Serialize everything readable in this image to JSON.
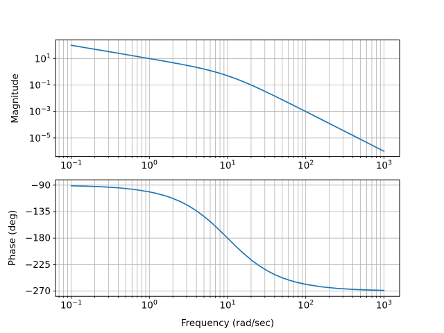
{
  "figure": {
    "background": "#ffffff",
    "title": ""
  },
  "chart_data": [
    {
      "type": "line",
      "name": "magnitude",
      "title": "",
      "xlabel": "",
      "ylabel": "Magnitude",
      "xscale": "log",
      "yscale": "log",
      "xlim_exponents": [
        -1.2,
        3.2
      ],
      "ylim_exponents": [
        -6.4,
        2.4
      ],
      "x_tick_exponents": [
        -1,
        0,
        1,
        2,
        3
      ],
      "y_tick_exponents": [
        1,
        -1,
        -3,
        -5
      ],
      "grid": "both",
      "grid_color": "#b0b0b0",
      "spine_color": "#000000",
      "line_color": "#1f77b4",
      "legend": "none",
      "x": [
        0.1,
        0.1585,
        0.2512,
        0.3981,
        0.631,
        1,
        1.259,
        1.585,
        1.995,
        2.512,
        3.162,
        3.981,
        5.012,
        6.31,
        7.943,
        10,
        12.59,
        15.85,
        19.95,
        25.12,
        31.62,
        39.81,
        50.12,
        63.1,
        79.43,
        100,
        158.5,
        251.2,
        398.1,
        631,
        1000
      ],
      "series": [
        {
          "name": "magnitude",
          "values": [
            99.99,
            63.08,
            39.78,
            25.08,
            15.785,
            9.901,
            7.819,
            6.1545,
            4.821,
            3.7446,
            2.875,
            2.1683,
            1.5947,
            1.1335,
            0.772,
            0.5,
            0.3073,
            0.17963,
            0.10065,
            0.054457,
            0.028756,
            0.014909,
            0.0076386,
            0.0038827,
            0.0019644,
            0.0009901,
            0.00025014,
            6.299e-05,
            1.584e-05,
            3.979e-06,
            9.999e-07
          ]
        }
      ]
    },
    {
      "type": "line",
      "name": "phase",
      "title": "",
      "xlabel": "Frequency (rad/sec)",
      "ylabel": "Phase (deg)",
      "xscale": "log",
      "yscale": "linear",
      "xlim_exponents": [
        -1.2,
        3.2
      ],
      "ylim": [
        -279,
        -81
      ],
      "x_tick_exponents": [
        -1,
        0,
        1,
        2,
        3
      ],
      "y_ticks": [
        -90,
        -135,
        -180,
        -225,
        -270
      ],
      "grid": "both",
      "grid_color": "#b0b0b0",
      "spine_color": "#000000",
      "line_color": "#1f77b4",
      "legend": "none",
      "x": [
        0.1,
        0.1585,
        0.2512,
        0.3981,
        0.631,
        1,
        1.259,
        1.585,
        1.995,
        2.512,
        3.162,
        3.981,
        5.012,
        6.31,
        7.943,
        10,
        12.59,
        15.85,
        19.95,
        25.12,
        31.62,
        39.81,
        50.12,
        63.1,
        79.43,
        100,
        158.5,
        251.2,
        398.1,
        631,
        1000
      ],
      "series": [
        {
          "name": "phase",
          "values": [
            -91.15,
            -91.82,
            -92.88,
            -94.56,
            -97.22,
            -101.42,
            -104.35,
            -108.01,
            -112.57,
            -118.2,
            -125.1,
            -133.4,
            -143.24,
            -154.5,
            -166.92,
            -180,
            -193.1,
            -205.49,
            -216.76,
            -226.6,
            -234.9,
            -241.8,
            -247.44,
            -251.99,
            -255.65,
            -258.58,
            -262.78,
            -265.44,
            -267.12,
            -268.18,
            -268.85
          ]
        }
      ]
    }
  ]
}
